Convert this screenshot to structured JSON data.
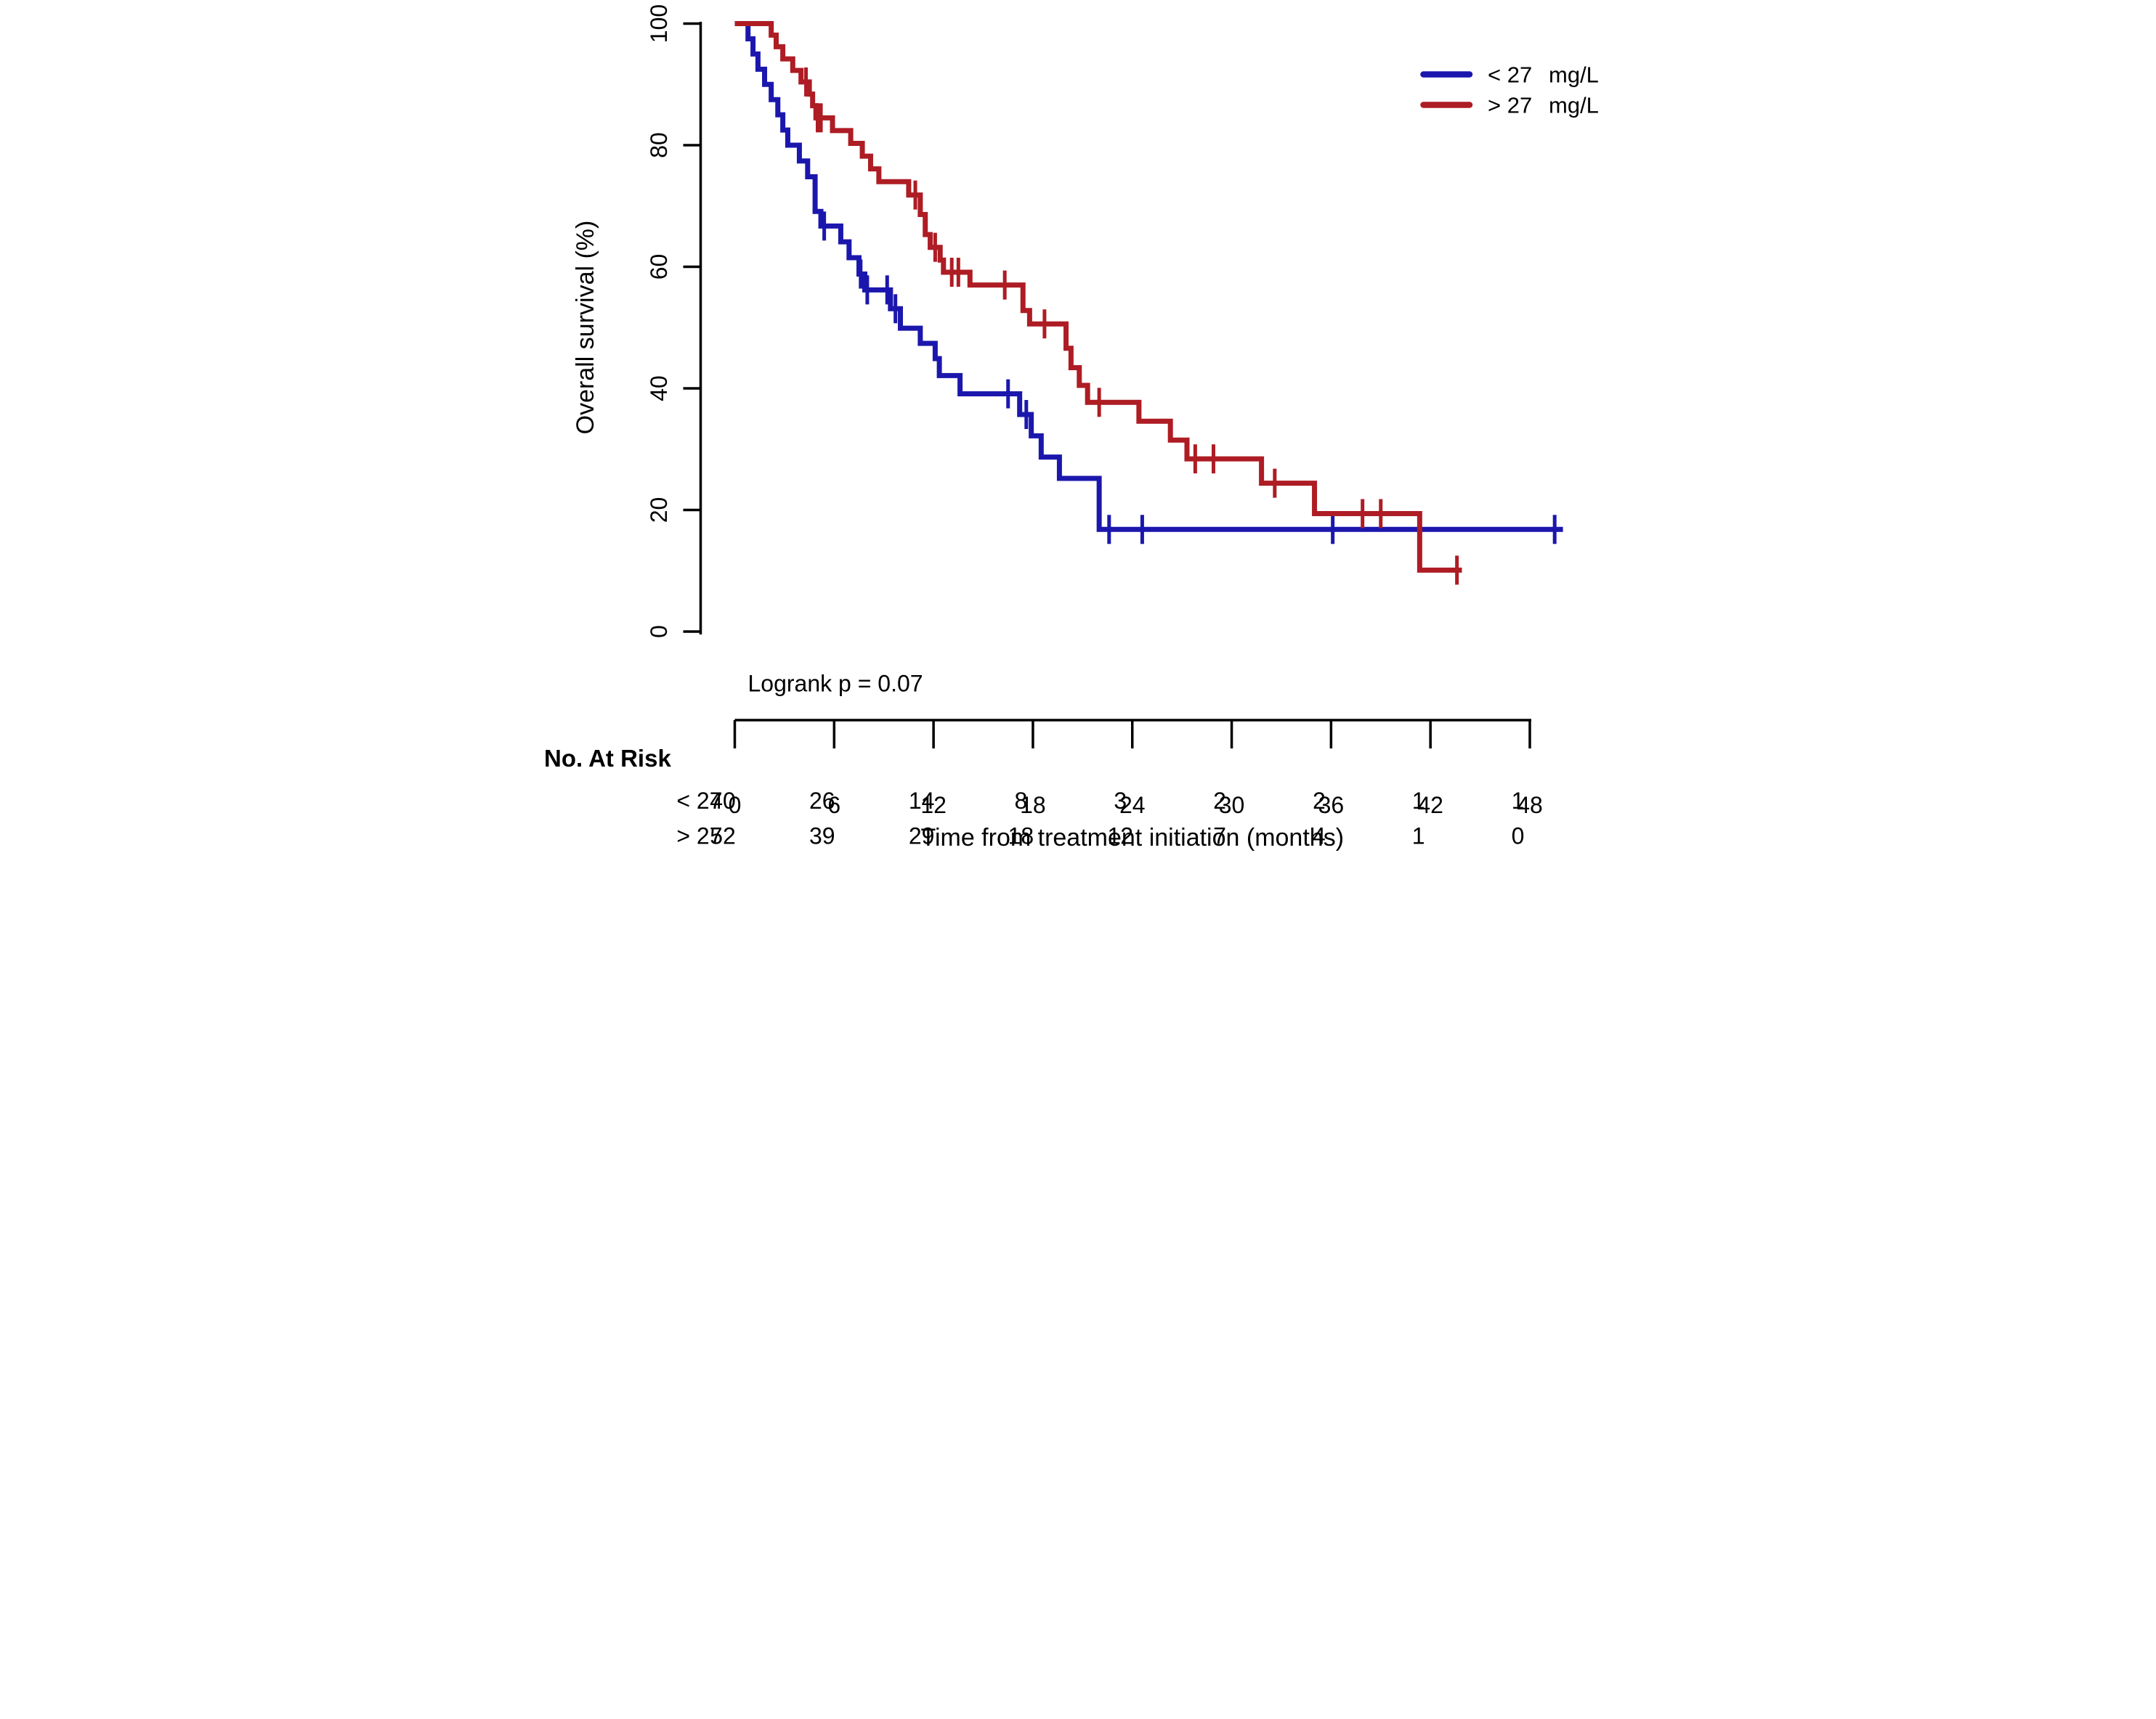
{
  "chart_data": {
    "type": "line",
    "subtype": "kaplan-meier-step",
    "title": "",
    "xlabel": "Time from treatment initiation (months)",
    "ylabel": "Overall survival (%)",
    "annotation": "Logrank p = 0.07",
    "xticks": [
      0,
      6,
      12,
      18,
      24,
      30,
      36,
      42,
      48
    ],
    "yticks": [
      0,
      20,
      40,
      60,
      80,
      100
    ],
    "xlim": [
      0,
      50
    ],
    "ylim": [
      0,
      100
    ],
    "grid": false,
    "legend_position": "top-right",
    "series": [
      {
        "id": "lt27",
        "label": "< 27",
        "unit": "mg/L",
        "color": "#1B17AD",
        "end_time": 50.0,
        "steps": [
          [
            0,
            100
          ],
          [
            0.8,
            97.5
          ],
          [
            1.1,
            95.0
          ],
          [
            1.4,
            92.5
          ],
          [
            1.8,
            90.0
          ],
          [
            2.2,
            87.5
          ],
          [
            2.6,
            85.0
          ],
          [
            2.9,
            82.5
          ],
          [
            3.2,
            80.0
          ],
          [
            3.9,
            77.4
          ],
          [
            4.4,
            74.8
          ],
          [
            4.85,
            69.1
          ],
          [
            5.2,
            66.7
          ],
          [
            6.4,
            64.1
          ],
          [
            6.9,
            61.5
          ],
          [
            7.5,
            58.8
          ],
          [
            7.85,
            56.2
          ],
          [
            9.4,
            53.1
          ],
          [
            10.0,
            49.9
          ],
          [
            11.2,
            47.4
          ],
          [
            12.1,
            44.9
          ],
          [
            12.35,
            42.1
          ],
          [
            13.6,
            39.1
          ],
          [
            17.2,
            35.7
          ],
          [
            17.9,
            32.2
          ],
          [
            18.5,
            28.7
          ],
          [
            19.6,
            25.2
          ],
          [
            22.0,
            16.8
          ]
        ],
        "censors": [
          [
            5.4,
            66.7
          ],
          [
            7.6,
            58.8
          ],
          [
            8.0,
            56.2
          ],
          [
            9.2,
            56.2
          ],
          [
            9.7,
            53.1
          ],
          [
            16.5,
            39.1
          ],
          [
            17.6,
            35.7
          ],
          [
            22.6,
            16.8
          ],
          [
            24.6,
            16.8
          ],
          [
            36.1,
            16.8
          ],
          [
            49.5,
            16.8
          ]
        ]
      },
      {
        "id": "gt27",
        "label": "> 27",
        "unit": "mg/L",
        "color": "#AE1C24",
        "end_time": 43.9,
        "steps": [
          [
            0,
            100
          ],
          [
            2.2,
            98.1
          ],
          [
            2.5,
            96.2
          ],
          [
            2.9,
            94.2
          ],
          [
            3.5,
            92.3
          ],
          [
            4.0,
            90.4
          ],
          [
            4.5,
            88.4
          ],
          [
            4.7,
            86.5
          ],
          [
            4.9,
            84.5
          ],
          [
            5.9,
            82.4
          ],
          [
            7.0,
            80.3
          ],
          [
            7.7,
            78.2
          ],
          [
            8.2,
            76.1
          ],
          [
            8.7,
            74.0
          ],
          [
            10.5,
            71.8
          ],
          [
            11.2,
            68.6
          ],
          [
            11.5,
            65.3
          ],
          [
            11.8,
            63.2
          ],
          [
            12.4,
            61.1
          ],
          [
            12.6,
            59.1
          ],
          [
            14.2,
            57.0
          ],
          [
            17.4,
            52.8
          ],
          [
            17.8,
            50.6
          ],
          [
            20.0,
            46.6
          ],
          [
            20.3,
            43.4
          ],
          [
            20.8,
            40.5
          ],
          [
            21.3,
            37.7
          ],
          [
            24.4,
            34.6
          ],
          [
            26.3,
            31.5
          ],
          [
            27.3,
            28.4
          ],
          [
            31.8,
            24.4
          ],
          [
            35.0,
            19.4
          ],
          [
            41.35,
            10.1
          ]
        ],
        "censors": [
          [
            4.3,
            90.4
          ],
          [
            5.0,
            84.5
          ],
          [
            5.2,
            84.5
          ],
          [
            10.9,
            71.8
          ],
          [
            12.1,
            63.2
          ],
          [
            13.1,
            59.1
          ],
          [
            13.5,
            59.1
          ],
          [
            16.3,
            57.0
          ],
          [
            18.7,
            50.6
          ],
          [
            22.0,
            37.7
          ],
          [
            27.8,
            28.4
          ],
          [
            28.9,
            28.4
          ],
          [
            32.6,
            24.4
          ],
          [
            37.9,
            19.4
          ],
          [
            39.0,
            19.4
          ],
          [
            43.6,
            10.1
          ]
        ]
      }
    ],
    "risk_table": {
      "header": "No. At Risk",
      "times": [
        0,
        6,
        12,
        18,
        24,
        30,
        36,
        42,
        48
      ],
      "rows": [
        {
          "id": "lt27",
          "label": "< 27",
          "values": [
            "40",
            "26",
            "14",
            "8",
            "3",
            "2",
            "2",
            "1",
            "1"
          ]
        },
        {
          "id": "gt27",
          "label": "> 27",
          "values": [
            "52",
            "39",
            "29",
            "18",
            "12",
            "7",
            "4",
            "1",
            "0"
          ]
        }
      ]
    }
  }
}
